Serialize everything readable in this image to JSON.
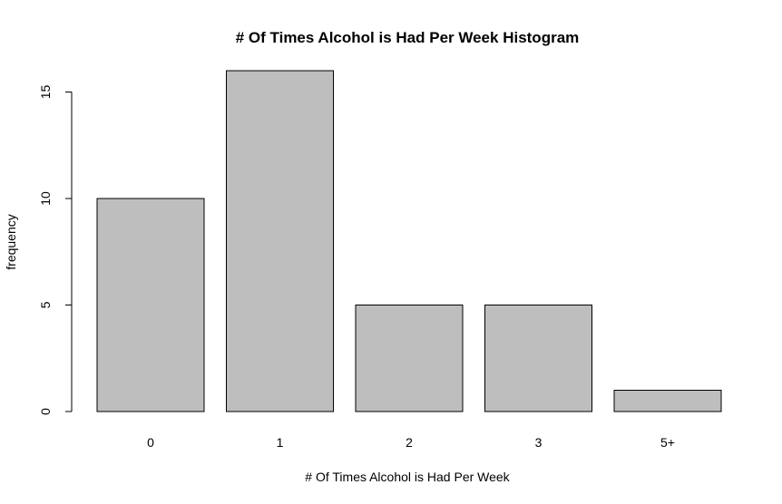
{
  "chart_data": {
    "type": "bar",
    "title": "# Of Times Alcohol is Had Per Week Histogram",
    "xlabel": "# Of Times Alcohol is Had Per Week",
    "ylabel": "frequency",
    "categories": [
      "0",
      "1",
      "2",
      "3",
      "5+"
    ],
    "values": [
      10,
      16,
      5,
      5,
      1
    ],
    "ylim": [
      0,
      16
    ],
    "yticks": [
      0,
      5,
      10,
      15
    ],
    "grid": false,
    "bar_color": "#bebebe",
    "bar_border_color": "#000000"
  }
}
